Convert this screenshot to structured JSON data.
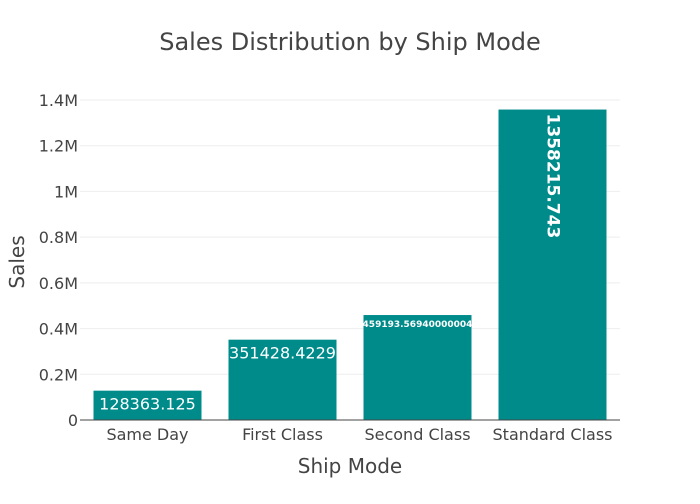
{
  "chart_data": {
    "type": "bar",
    "title": "Sales Distribution by Ship Mode",
    "xlabel": "Ship Mode",
    "ylabel": "Sales",
    "categories": [
      "Same Day",
      "First Class",
      "Second Class",
      "Standard Class"
    ],
    "values": [
      128363.125,
      351428.4229,
      459193.56940000004,
      1358215.743
    ],
    "data_labels": [
      "128363.125",
      "351428.4229",
      "459193.56940000004",
      "1358215.743"
    ],
    "ylim": [
      0,
      1400000
    ],
    "yticks": [
      0,
      200000,
      400000,
      600000,
      800000,
      1000000,
      1200000,
      1400000
    ],
    "ytick_labels": [
      "0",
      "0.2M",
      "0.4M",
      "0.6M",
      "0.8M",
      "1M",
      "1.2M",
      "1.4M"
    ],
    "grid": true,
    "legend": "none",
    "colors": {
      "bar": "#008b8b",
      "grid": "#eeeeee",
      "axis_line": "#444444",
      "text": "#444444",
      "label_text": "#ffffff"
    }
  }
}
